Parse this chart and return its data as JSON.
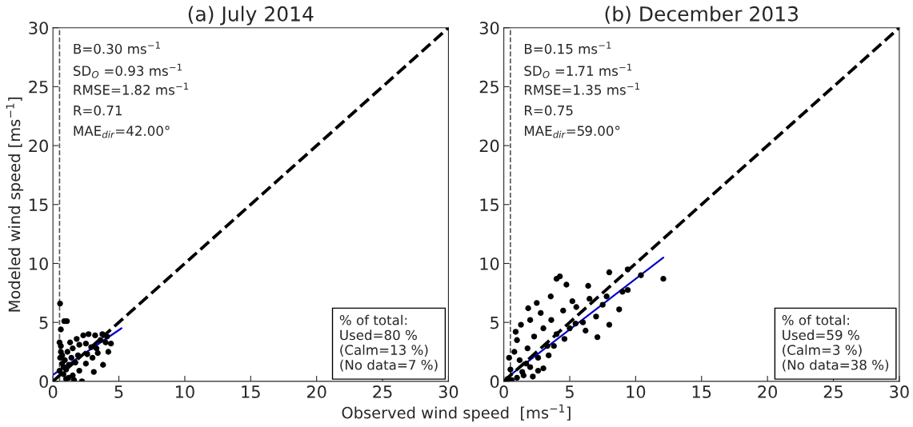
{
  "chart_data": [
    {
      "type": "scatter",
      "title": "(a) July 2014",
      "xlabel": "Observed wind speed  [ms$^{−1}$]",
      "ylabel": "Modeled wind speed [ms$^{−1}$]",
      "xlim": [
        0,
        30
      ],
      "ylim": [
        0,
        30
      ],
      "xticks": [
        0,
        5,
        10,
        15,
        20,
        25,
        30
      ],
      "yticks": [
        0,
        5,
        10,
        15,
        20,
        25,
        30
      ],
      "grid": false,
      "legend": false,
      "series": [
        {
          "type": "scatter",
          "color": "#000000",
          "marker": "circle",
          "x": [
            0.54,
            0.86,
            1.06,
            0.6,
            0.5,
            0.6,
            0.7,
            0.8,
            1.0,
            1.2,
            1.5,
            2.0,
            2.5,
            3.0,
            3.4,
            3.75,
            4.1,
            4.4,
            4.2,
            3.8,
            3.1,
            2.2,
            1.6,
            1.0,
            0.7,
            0.6,
            1.3,
            1.8,
            2.3,
            2.7,
            3.2,
            3.6,
            1.1,
            1.5,
            2.0,
            2.5,
            2.9,
            0.9,
            1.4,
            1.9,
            0.8,
            1.2,
            1.7,
            2.6,
            3.3,
            4.0,
            0.5,
            0.55
          ],
          "values": [
            6.6,
            5.1,
            5.1,
            4.4,
            3.3,
            2.5,
            1.5,
            0.6,
            0.2,
            0.3,
            0.5,
            0.9,
            1.5,
            2.0,
            2.4,
            4.0,
            3.8,
            3.2,
            2.5,
            1.4,
            0.8,
            0.0,
            0.1,
            1.0,
            2.2,
            3.0,
            3.3,
            3.6,
            3.9,
            4.0,
            3.9,
            3.5,
            2.5,
            2.8,
            3.1,
            3.2,
            2.9,
            1.8,
            2.0,
            2.2,
            1.2,
            1.4,
            1.6,
            2.3,
            2.8,
            3.3,
            0.9,
            2.0
          ]
        },
        {
          "type": "line",
          "color": "#0000cc",
          "line_style": "solid",
          "x": [
            0,
            5.2
          ],
          "values": [
            0.55,
            4.5
          ]
        },
        {
          "type": "line",
          "color": "#000000",
          "line_style": "dashed",
          "x": [
            0,
            30
          ],
          "values": [
            0,
            30
          ]
        }
      ],
      "ref_lines": [
        {
          "axis": "x",
          "value": 0.5,
          "color": "#555555",
          "line_style": "dashed"
        }
      ],
      "annotations": [
        "B=0.30 ms$^{−1}$",
        "SD$_{O}$ =0.93 ms$^{−1}$",
        "RMSE=1.82 ms$^{−1}$",
        "R=0.71",
        "MAE$_{dir}$=42.00°",
        "% of total:\nUsed=80 %\n(Calm=13 %)\n(No data=7 %)"
      ]
    },
    {
      "type": "scatter",
      "title": "(b) December 2013",
      "xlim": [
        0,
        30
      ],
      "ylim": [
        0,
        30
      ],
      "xticks": [
        0,
        5,
        10,
        15,
        20,
        25,
        30
      ],
      "yticks": [
        0,
        5,
        10,
        15,
        20,
        25,
        30
      ],
      "grid": false,
      "legend": false,
      "series": [
        {
          "type": "scatter",
          "color": "#000000",
          "marker": "circle",
          "x": [
            12.1,
            10.4,
            9.4,
            8.0,
            4.0,
            4.25,
            4.75,
            6.4,
            8.75,
            7.1,
            1.85,
            2.5,
            3.56,
            5.44,
            8.0,
            9.4,
            0.3,
            0.5,
            0.8,
            1.0,
            1.2,
            1.5,
            1.8,
            2.0,
            2.3,
            2.6,
            3.0,
            3.3,
            3.6,
            4.0,
            4.5,
            5.0,
            5.5,
            6.0,
            6.5,
            7.0,
            7.5,
            0.6,
            1.0,
            1.4,
            1.7,
            2.2,
            2.6,
            3.0,
            3.4,
            0.4,
            0.9,
            1.3,
            2.0,
            2.8,
            3.8,
            4.6,
            5.2,
            6.2,
            7.8,
            9.0
          ],
          "values": [
            8.7,
            9.0,
            9.5,
            9.25,
            8.7,
            8.9,
            8.2,
            8.1,
            6.1,
            3.75,
            6.2,
            6.65,
            7.2,
            4.9,
            4.8,
            7.75,
            0.2,
            1.0,
            2.5,
            3.5,
            1.8,
            0.5,
            2.8,
            1.2,
            3.8,
            2.0,
            4.5,
            3.0,
            5.2,
            4.0,
            6.0,
            4.5,
            6.3,
            5.0,
            7.0,
            5.5,
            6.5,
            0.1,
            0.3,
            0.8,
            1.5,
            0.4,
            0.9,
            1.1,
            2.2,
            2.0,
            4.2,
            4.8,
            5.2,
            5.8,
            3.0,
            3.6,
            6.8,
            4.3,
            7.2,
            7.6
          ]
        },
        {
          "type": "line",
          "color": "#0000cc",
          "line_style": "solid",
          "x": [
            0.19,
            12.1
          ],
          "values": [
            0.27,
            10.5
          ]
        },
        {
          "type": "line",
          "color": "#000000",
          "line_style": "dashed",
          "x": [
            0,
            30
          ],
          "values": [
            0,
            30
          ]
        }
      ],
      "ref_lines": [
        {
          "axis": "x",
          "value": 0.5,
          "color": "#555555",
          "line_style": "dashed"
        }
      ],
      "annotations": [
        "B=0.15 ms$^{−1}$",
        "SD$_{O}$ =1.71 ms$^{−1}$",
        "RMSE=1.35 ms$^{−1}$",
        "R=0.75",
        "MAE$_{dir}$=59.00°",
        "% of total:\nUsed=59 %\n(Calm=3 %)\n(No data=38 %)"
      ]
    }
  ]
}
